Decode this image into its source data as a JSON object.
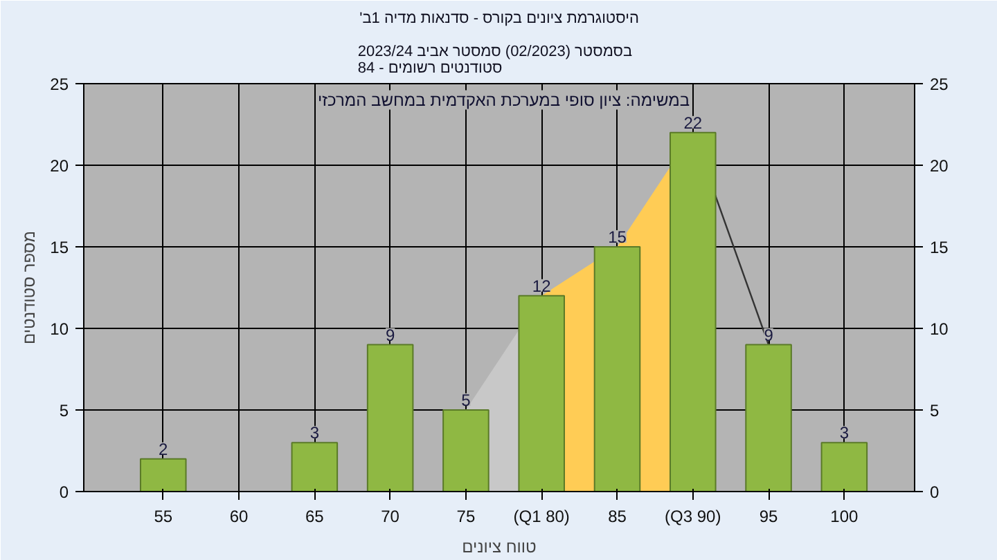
{
  "chart_data": {
    "type": "bar",
    "title": "'היסטוגרמת ציונים בקורס - סדנאות מדיה 1ב",
    "subtitle": "בסמסטר  (02/2023)  סמסטר אביב 2023/24\nסטודנטים רשומים - 84",
    "xlabel": "טווח ציונים",
    "ylabel": "מספר סטודנטים",
    "annotations": [
      "במשימה: ציון סופי במערכת האקדמית במחשב המרכזי"
    ],
    "categories": [
      "55",
      "60",
      "65",
      "70",
      "75",
      "(Q1 80)",
      "85",
      "(Q3 90)",
      "95",
      "100"
    ],
    "series": [
      {
        "type": "area",
        "color": "#c8c8c8",
        "values": [
          null,
          null,
          null,
          null,
          5,
          12,
          null,
          null,
          null,
          null
        ]
      },
      {
        "type": "area",
        "color": "#ffcc55",
        "values": [
          null,
          null,
          null,
          null,
          null,
          12,
          15,
          22,
          null,
          null
        ]
      },
      {
        "type": "line",
        "color": "#333333",
        "values": [
          null,
          null,
          null,
          null,
          null,
          null,
          null,
          22,
          9,
          null
        ]
      },
      {
        "color": "#8fb843",
        "values": [
          2,
          null,
          3,
          9,
          5,
          12,
          15,
          22,
          9,
          3
        ],
        "value_labels": [
          "2",
          null,
          "3",
          "9",
          "5",
          "12",
          "15",
          "22",
          "9",
          "3"
        ]
      }
    ],
    "ylim": [
      0,
      25
    ],
    "yticks": [
      0,
      5,
      10,
      15,
      20,
      25
    ],
    "y2lim": [
      0,
      25
    ],
    "y2ticks": [
      0,
      5,
      10,
      15,
      20,
      25
    ],
    "grid": true
  }
}
